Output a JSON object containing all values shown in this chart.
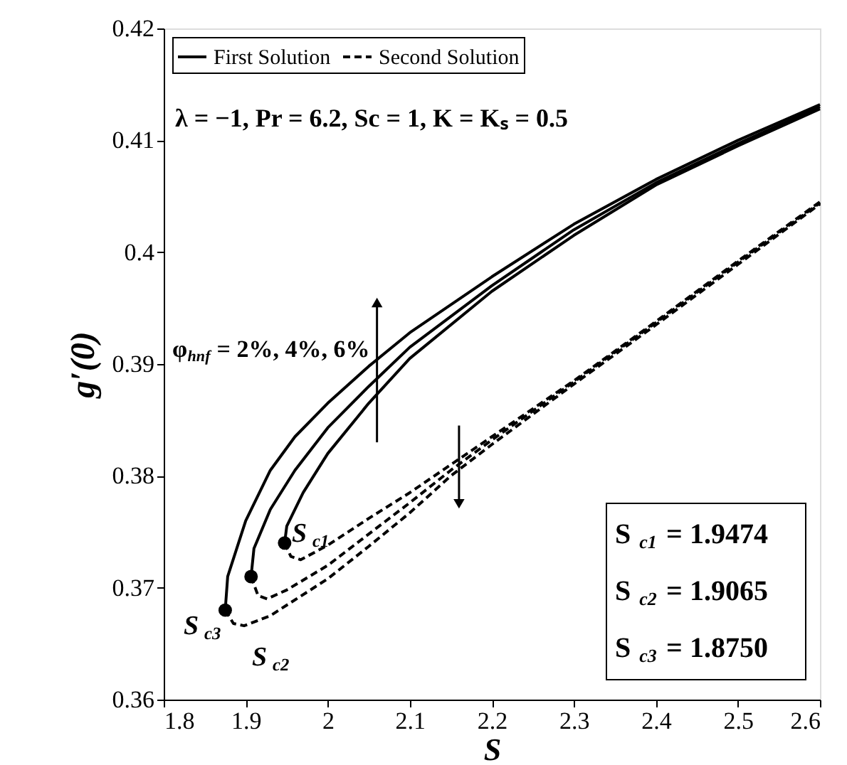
{
  "chart_data": {
    "type": "line",
    "xlabel": "S",
    "ylabel": "g′(0)",
    "xlim": [
      1.8,
      2.6
    ],
    "xticks": [
      1.8,
      1.9,
      2,
      2.1,
      2.2,
      2.3,
      2.4,
      2.5,
      2.6
    ],
    "ylim": [
      0.36,
      0.42
    ],
    "yticks": [
      0.36,
      0.37,
      0.38,
      0.39,
      0.4,
      0.41,
      0.42
    ],
    "grid": false,
    "legend": "top left",
    "series": [
      {
        "name": "First Solution",
        "color": "#000000",
        "line_style": "solid",
        "x": [
          1.9474,
          1.95,
          1.97,
          2.0,
          2.05,
          2.1,
          2.2,
          2.3,
          2.4,
          2.5,
          2.6
        ],
        "values": [
          0.374,
          0.3755,
          0.3785,
          0.382,
          0.3865,
          0.3905,
          0.3965,
          0.4015,
          0.406,
          0.4095,
          0.4128
        ]
      },
      {
        "color": "#000000",
        "line_style": "solid",
        "x": [
          1.9065,
          1.91,
          1.93,
          1.96,
          2.0,
          2.05,
          2.1,
          2.2,
          2.3,
          2.4,
          2.5,
          2.6
        ],
        "values": [
          0.371,
          0.3735,
          0.377,
          0.3805,
          0.3843,
          0.388,
          0.3915,
          0.397,
          0.402,
          0.4062,
          0.4097,
          0.413
        ]
      },
      {
        "color": "#000000",
        "line_style": "solid",
        "x": [
          1.875,
          1.878,
          1.9,
          1.93,
          1.96,
          2.0,
          2.05,
          2.1,
          2.2,
          2.3,
          2.4,
          2.5,
          2.6
        ],
        "values": [
          0.368,
          0.371,
          0.376,
          0.3805,
          0.3835,
          0.3865,
          0.3898,
          0.3928,
          0.3978,
          0.4025,
          0.4065,
          0.41,
          0.4132
        ]
      },
      {
        "name": "Second Solution",
        "color": "#000000",
        "line_style": "dashed",
        "x": [
          1.9474,
          1.955,
          1.967,
          2.0,
          2.05,
          2.1,
          2.15,
          2.2,
          2.3,
          2.4,
          2.5,
          2.6
        ],
        "values": [
          0.374,
          0.3728,
          0.3725,
          0.3738,
          0.3762,
          0.3785,
          0.381,
          0.3835,
          0.3885,
          0.3938,
          0.3992,
          0.4045
        ]
      },
      {
        "color": "#000000",
        "line_style": "dashed",
        "x": [
          1.9065,
          1.915,
          1.926,
          1.95,
          2.0,
          2.05,
          2.1,
          2.15,
          2.2,
          2.3,
          2.4,
          2.5,
          2.6
        ],
        "values": [
          0.371,
          0.3693,
          0.369,
          0.3698,
          0.372,
          0.3748,
          0.3776,
          0.3805,
          0.3832,
          0.3884,
          0.3937,
          0.3991,
          0.4044
        ]
      },
      {
        "color": "#000000",
        "line_style": "dashed",
        "x": [
          1.875,
          1.885,
          1.898,
          1.93,
          2.0,
          2.05,
          2.1,
          2.15,
          2.2,
          2.3,
          2.4,
          2.5,
          2.6
        ],
        "values": [
          0.368,
          0.3668,
          0.3666,
          0.3675,
          0.3708,
          0.3737,
          0.3767,
          0.38,
          0.3828,
          0.3882,
          0.3935,
          0.3989,
          0.4043
        ]
      },
      {
        "type": "scatter",
        "marker": "circle",
        "color": "#000000",
        "x": [
          1.9474,
          1.9065,
          1.875
        ],
        "values": [
          0.374,
          0.371,
          0.368
        ]
      }
    ],
    "annotations": [
      "λ = −1, Pr = 6.2, Sc = 1, K = Kₛ = 0.5",
      "φ$_{hnf}$ = 2%, 4%, 6%",
      "S$_{c1}$",
      "S$_{c3}$",
      "S$_{c2}$",
      "S$_{c1}$ = 1.9474",
      "S$_{c2}$ = 1.9065",
      "S$_{c3}$ = 1.8750"
    ]
  }
}
